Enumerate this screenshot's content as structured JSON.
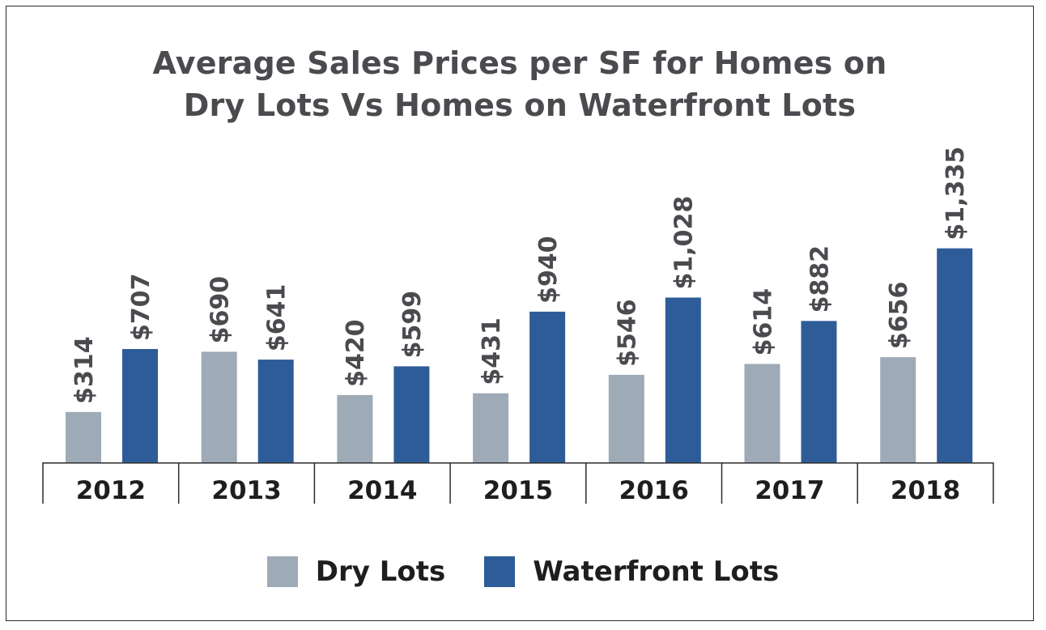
{
  "chart_data": {
    "type": "bar",
    "title_lines": [
      "Average Sales Prices per SF for Homes on",
      "Dry Lots Vs Homes on Waterfront Lots"
    ],
    "categories": [
      "2012",
      "2013",
      "2014",
      "2015",
      "2016",
      "2017",
      "2018"
    ],
    "series": [
      {
        "name": "Dry Lots",
        "color": "#9eaab5",
        "values": [
          314,
          690,
          420,
          431,
          546,
          614,
          656
        ],
        "labels": [
          "$314",
          "$690",
          "$420",
          "$431",
          "$546",
          "$614",
          "$656"
        ]
      },
      {
        "name": "Waterfront Lots",
        "color": "#2e5c99",
        "values": [
          707,
          641,
          599,
          940,
          1028,
          882,
          1335
        ],
        "labels": [
          "$707",
          "$641",
          "$599",
          "$940",
          "$1,028",
          "$882",
          "$1,335"
        ]
      }
    ],
    "label_colors": {
      "outside": "#4a4b4f",
      "inside": "#ffffff"
    },
    "ylim": [
      0,
      1400
    ],
    "grid": false,
    "legend_position": "bottom"
  }
}
